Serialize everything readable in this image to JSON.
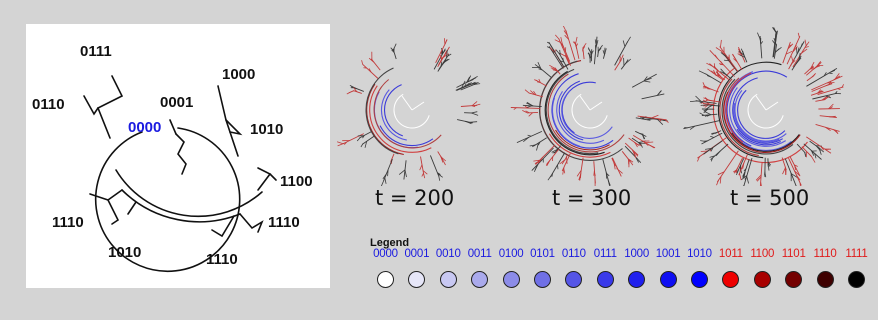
{
  "tree": {
    "root_label": "0000",
    "leaf_labels": [
      "0111",
      "0110",
      "0001",
      "1000",
      "1010",
      "1100",
      "1110",
      "1110",
      "1010",
      "1110"
    ]
  },
  "snapshots": [
    {
      "label": "t = 200",
      "density": 0.35
    },
    {
      "label": "t = 300",
      "density": 0.75
    },
    {
      "label": "t = 500",
      "density": 1.0
    }
  ],
  "legend": {
    "title": "Legend",
    "items": [
      {
        "code": "0000",
        "text_color": "#1a1ae0",
        "fill": "#ffffff"
      },
      {
        "code": "0001",
        "text_color": "#1a1ae0",
        "fill": "#e6e6f8"
      },
      {
        "code": "0010",
        "text_color": "#1a1ae0",
        "fill": "#c8c8f2"
      },
      {
        "code": "0011",
        "text_color": "#1a1ae0",
        "fill": "#aaaaec"
      },
      {
        "code": "0100",
        "text_color": "#1a1ae0",
        "fill": "#8c8ce8"
      },
      {
        "code": "0101",
        "text_color": "#1a1ae0",
        "fill": "#7070e6"
      },
      {
        "code": "0110",
        "text_color": "#1a1ae0",
        "fill": "#5555e6"
      },
      {
        "code": "0111",
        "text_color": "#1a1ae0",
        "fill": "#3a3aea"
      },
      {
        "code": "1000",
        "text_color": "#1a1ae0",
        "fill": "#2020ee"
      },
      {
        "code": "1001",
        "text_color": "#1a1ae0",
        "fill": "#0e0ef2"
      },
      {
        "code": "1010",
        "text_color": "#1a1ae0",
        "fill": "#0000ff"
      },
      {
        "code": "1011",
        "text_color": "#e01a1a",
        "fill": "#ee0000"
      },
      {
        "code": "1100",
        "text_color": "#e01a1a",
        "fill": "#a80000"
      },
      {
        "code": "1101",
        "text_color": "#e01a1a",
        "fill": "#740000"
      },
      {
        "code": "1110",
        "text_color": "#e01a1a",
        "fill": "#3e0000"
      },
      {
        "code": "1111",
        "text_color": "#e01a1a",
        "fill": "#000000"
      }
    ]
  }
}
